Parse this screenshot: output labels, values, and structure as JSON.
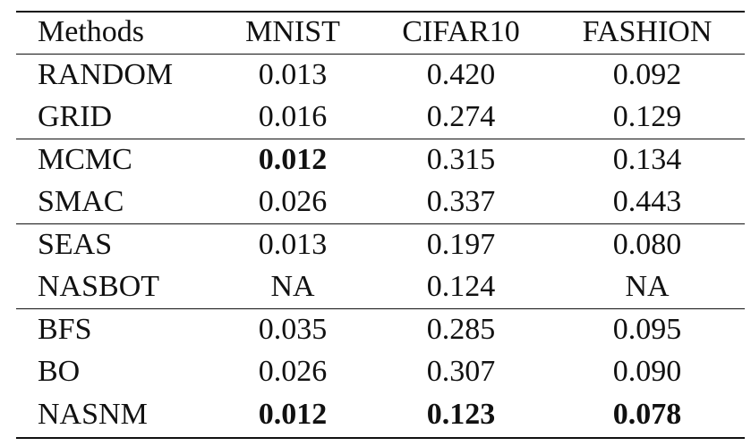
{
  "table": {
    "header": [
      "Methods",
      "MNIST",
      "CIFAR10",
      "FASHION"
    ],
    "groups": [
      [
        {
          "cells": [
            "RANDOM",
            "0.013",
            "0.420",
            "0.092"
          ],
          "bold": []
        },
        {
          "cells": [
            "GRID",
            "0.016",
            "0.274",
            "0.129"
          ],
          "bold": []
        }
      ],
      [
        {
          "cells": [
            "MCMC",
            "0.012",
            "0.315",
            "0.134"
          ],
          "bold": [
            1
          ]
        },
        {
          "cells": [
            "SMAC",
            "0.026",
            "0.337",
            "0.443"
          ],
          "bold": []
        }
      ],
      [
        {
          "cells": [
            "SEAS",
            "0.013",
            "0.197",
            "0.080"
          ],
          "bold": []
        },
        {
          "cells": [
            "NASBOT",
            "NA",
            "0.124",
            "NA"
          ],
          "bold": []
        }
      ],
      [
        {
          "cells": [
            "BFS",
            "0.035",
            "0.285",
            "0.095"
          ],
          "bold": []
        },
        {
          "cells": [
            "BO",
            "0.026",
            "0.307",
            "0.090"
          ],
          "bold": []
        },
        {
          "cells": [
            "NASNM",
            "0.012",
            "0.123",
            "0.078"
          ],
          "bold": [
            1,
            2,
            3
          ]
        }
      ]
    ]
  }
}
